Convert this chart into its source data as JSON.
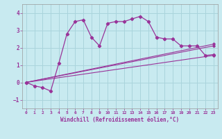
{
  "xlabel": "Windchill (Refroidissement éolien,°C)",
  "bg_color": "#c8eaf0",
  "grid_color": "#aad4dc",
  "line_color": "#993399",
  "xlim": [
    -0.5,
    23.5
  ],
  "ylim": [
    -1.5,
    4.5
  ],
  "yticks": [
    -1,
    0,
    1,
    2,
    3,
    4
  ],
  "xticks": [
    0,
    1,
    2,
    3,
    4,
    5,
    6,
    7,
    8,
    9,
    10,
    11,
    12,
    13,
    14,
    15,
    16,
    17,
    18,
    19,
    20,
    21,
    22,
    23
  ],
  "series1_x": [
    0,
    1,
    2,
    3,
    4,
    5,
    6,
    7,
    8,
    9,
    10,
    11,
    12,
    13,
    14,
    15,
    16,
    17,
    18,
    19,
    20,
    21,
    22,
    23
  ],
  "series1_y": [
    0.0,
    -0.2,
    -0.3,
    -0.5,
    1.1,
    2.8,
    3.5,
    3.6,
    2.6,
    2.1,
    3.4,
    3.5,
    3.5,
    3.65,
    3.8,
    3.5,
    2.6,
    2.5,
    2.5,
    2.1,
    2.1,
    2.1,
    1.55,
    1.6
  ],
  "series2_x": [
    0,
    23
  ],
  "series2_y": [
    0.0,
    2.1
  ],
  "series3_x": [
    0,
    23
  ],
  "series3_y": [
    0.0,
    2.2
  ],
  "series4_x": [
    0,
    23
  ],
  "series4_y": [
    0.0,
    1.55
  ]
}
